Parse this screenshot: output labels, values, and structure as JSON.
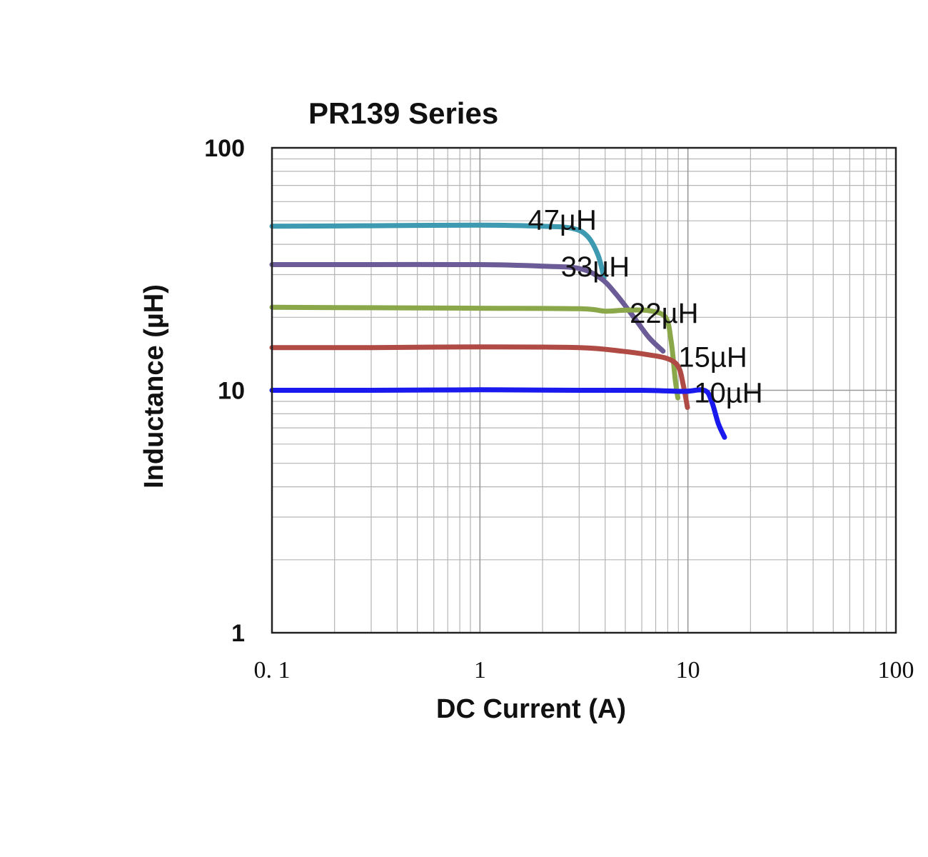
{
  "chart_data": {
    "type": "line",
    "title": "PR139 Series",
    "xlabel": "DC Current (A)",
    "ylabel": "Inductance (µH)",
    "x_scale": "log",
    "y_scale": "log",
    "xlim": [
      0.1,
      100
    ],
    "ylim": [
      1,
      100
    ],
    "x_ticks": [
      0.1,
      1,
      10,
      100
    ],
    "x_tick_labels": [
      "0. 1",
      "1",
      "10",
      "100"
    ],
    "y_ticks": [
      1,
      10,
      100
    ],
    "y_tick_labels": [
      "1",
      "10",
      "100"
    ],
    "grid": true,
    "legend": "none",
    "series": [
      {
        "name": "47µH",
        "color": "#3d9ab0",
        "label_at": [
          1.7,
          46
        ],
        "points": [
          [
            0.1,
            47.5
          ],
          [
            0.3,
            47.7
          ],
          [
            1.0,
            48.0
          ],
          [
            2.0,
            47.5
          ],
          [
            2.8,
            46.5
          ],
          [
            3.3,
            43.0
          ],
          [
            3.7,
            36.0
          ],
          [
            3.95,
            29.0
          ]
        ]
      },
      {
        "name": "33µH",
        "color": "#6b5b96",
        "label_at": [
          2.45,
          29.5
        ],
        "points": [
          [
            0.1,
            33.0
          ],
          [
            0.3,
            33.0
          ],
          [
            1.0,
            33.0
          ],
          [
            2.0,
            32.5
          ],
          [
            3.0,
            31.8
          ],
          [
            3.8,
            29.0
          ],
          [
            4.5,
            25.0
          ],
          [
            5.5,
            20.0
          ],
          [
            6.5,
            16.5
          ],
          [
            7.6,
            14.5
          ]
        ]
      },
      {
        "name": "22µH",
        "color": "#8aa84a",
        "label_at": [
          5.25,
          19.0
        ],
        "points": [
          [
            0.1,
            22.0
          ],
          [
            0.3,
            21.9
          ],
          [
            1.0,
            21.8
          ],
          [
            3.0,
            21.7
          ],
          [
            4.0,
            21.2
          ],
          [
            5.0,
            21.4
          ],
          [
            6.5,
            21.3
          ],
          [
            7.8,
            20.0
          ],
          [
            8.3,
            16.0
          ],
          [
            8.7,
            11.0
          ],
          [
            8.95,
            9.3
          ]
        ]
      },
      {
        "name": "15µH",
        "color": "#b04a45",
        "label_at": [
          9.0,
          12.5
        ],
        "points": [
          [
            0.1,
            15.0
          ],
          [
            0.3,
            15.0
          ],
          [
            1.0,
            15.1
          ],
          [
            3.0,
            15.0
          ],
          [
            4.8,
            14.5
          ],
          [
            6.5,
            14.0
          ],
          [
            8.0,
            13.5
          ],
          [
            9.0,
            12.5
          ],
          [
            9.5,
            10.5
          ],
          [
            9.95,
            8.5
          ]
        ]
      },
      {
        "name": "10µH",
        "color": "#1a1aee",
        "label_at": [
          10.7,
          8.9
        ],
        "points": [
          [
            0.1,
            10.0
          ],
          [
            0.3,
            10.0
          ],
          [
            1.0,
            10.05
          ],
          [
            3.0,
            10.0
          ],
          [
            6.0,
            10.0
          ],
          [
            9.5,
            9.9
          ],
          [
            12.0,
            10.0
          ],
          [
            13.0,
            9.0
          ],
          [
            14.0,
            7.3
          ],
          [
            15.0,
            6.4
          ]
        ]
      }
    ]
  }
}
